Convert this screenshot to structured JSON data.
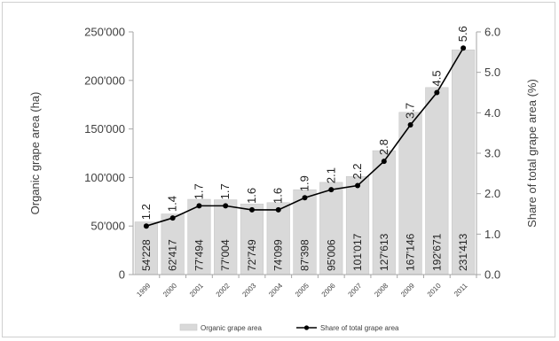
{
  "chart_data": {
    "type": "bar",
    "title": "",
    "categories": [
      "1999",
      "2000",
      "2001",
      "2002",
      "2003",
      "2004",
      "2005",
      "2006",
      "2007",
      "2008",
      "2009",
      "2010",
      "2011"
    ],
    "series": [
      {
        "name": "Organic grape area",
        "type": "bar",
        "axis": "left",
        "values": [
          54228,
          62417,
          77494,
          77004,
          72749,
          74099,
          87398,
          95006,
          101017,
          127613,
          167146,
          192671,
          231413
        ],
        "labels": [
          "54'228",
          "62'417",
          "77'494",
          "77'004",
          "72'749",
          "74'099",
          "87'398",
          "95'006",
          "101'017",
          "127'613",
          "167'146",
          "192'671",
          "231'413"
        ],
        "color": "#d9d9d9"
      },
      {
        "name": "Share of total grape area",
        "type": "line",
        "axis": "right",
        "values": [
          1.2,
          1.4,
          1.7,
          1.7,
          1.6,
          1.6,
          1.9,
          2.1,
          2.2,
          2.8,
          3.7,
          4.5,
          5.6
        ],
        "labels": [
          "1.2",
          "1.4",
          "1.7",
          "1.7",
          "1.6",
          "1.6",
          "1.9",
          "2.1",
          "2.2",
          "2.8",
          "3.7",
          "4.5",
          "5.6"
        ],
        "color": "#000000"
      }
    ],
    "y_left": {
      "label": "Organic grape area  (ha)",
      "ylim": [
        0,
        250000
      ],
      "ticks": [
        0,
        50000,
        100000,
        150000,
        200000,
        250000
      ],
      "tick_labels": [
        "0",
        "50'000",
        "100'000",
        "150'000",
        "200'000",
        "250'000"
      ]
    },
    "y_right": {
      "label": "Share of total grape area  (%)",
      "ylim": [
        0,
        6
      ],
      "ticks": [
        0,
        1,
        2,
        3,
        4,
        5,
        6
      ],
      "tick_labels": [
        "0.0",
        "1.0",
        "2.0",
        "3.0",
        "4.0",
        "5.0",
        "6.0"
      ]
    },
    "grid": false,
    "legend_position": "bottom"
  }
}
